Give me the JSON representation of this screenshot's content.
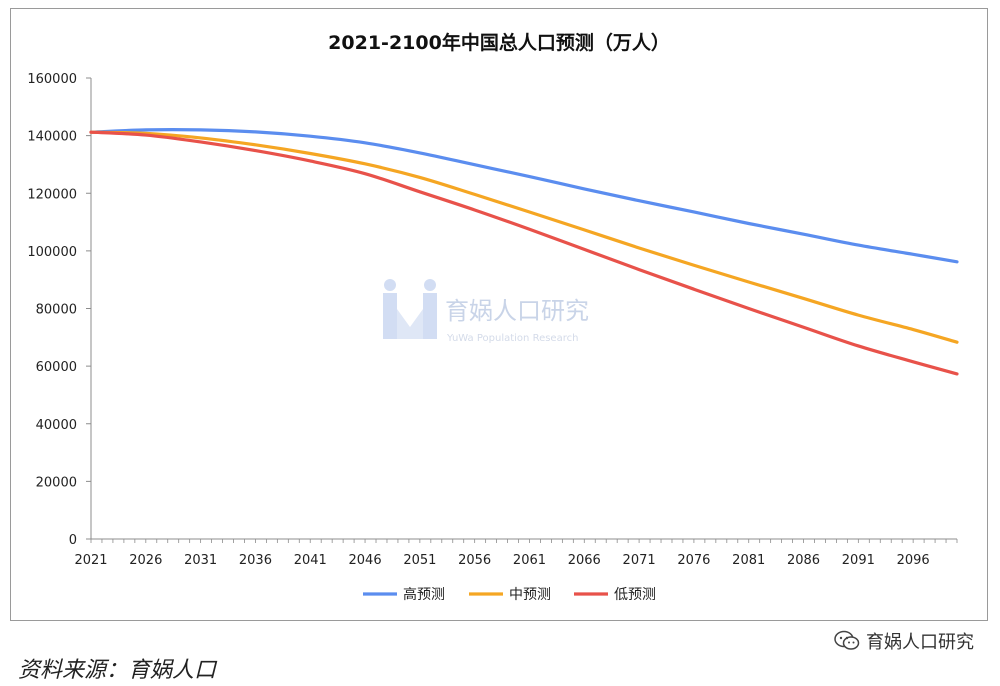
{
  "chart_data": {
    "type": "line",
    "title": "2021-2100年中国总人口预测（万人）",
    "xlabel": "",
    "ylabel": "",
    "x_ticks": [
      "2021",
      "2026",
      "2031",
      "2036",
      "2041",
      "2046",
      "2051",
      "2056",
      "2061",
      "2066",
      "2071",
      "2076",
      "2081",
      "2086",
      "2091",
      "2096"
    ],
    "x_range": [
      2021,
      2100
    ],
    "y_ticks": [
      "0",
      "20000",
      "40000",
      "60000",
      "80000",
      "100000",
      "120000",
      "140000",
      "160000"
    ],
    "ylim": [
      0,
      160000
    ],
    "grid": false,
    "legend_position": "bottom",
    "x": [
      2021,
      2026,
      2031,
      2036,
      2041,
      2046,
      2051,
      2056,
      2061,
      2066,
      2071,
      2076,
      2081,
      2086,
      2091,
      2096,
      2100
    ],
    "series": [
      {
        "name": "高预测",
        "color": "#5b8def",
        "values": [
          141200,
          142000,
          142000,
          141300,
          139800,
          137500,
          134000,
          129900,
          125800,
          121500,
          117400,
          113500,
          109500,
          105800,
          102000,
          98800,
          96200
        ]
      },
      {
        "name": "中预测",
        "color": "#f5a623",
        "values": [
          141200,
          140800,
          139200,
          136800,
          133800,
          130200,
          125500,
          119600,
          113500,
          107300,
          101000,
          95000,
          89200,
          83500,
          77700,
          72700,
          68300
        ]
      },
      {
        "name": "低预测",
        "color": "#e8524a",
        "values": [
          141200,
          140200,
          137800,
          134800,
          131200,
          126800,
          120500,
          114200,
          107500,
          100500,
          93500,
          86700,
          80000,
          73500,
          67000,
          61500,
          57300
        ]
      }
    ]
  },
  "watermark": {
    "name": "育娲人口研究",
    "subtitle": "YuWa Population Research"
  },
  "source_note": "资料来源：育娲人口",
  "wechat_tag": {
    "label": "育娲人口研究",
    "icon": "wechat-icon"
  }
}
